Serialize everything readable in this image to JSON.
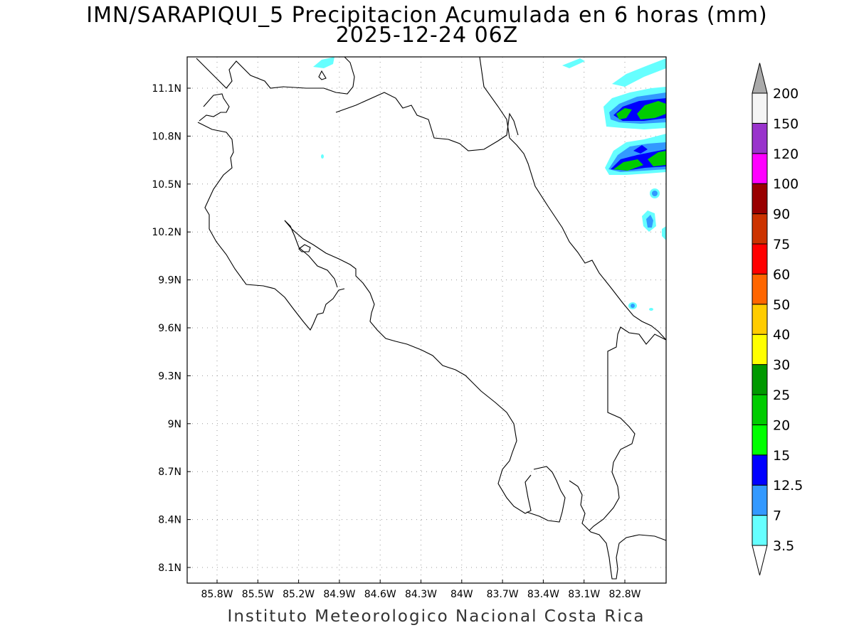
{
  "title": {
    "line1": "IMN/SARAPIQUI_5 Precipitacion Acumulada en 6 horas (mm)",
    "line2": "2025-12-24 06Z"
  },
  "footer": "Instituto Meteorologico Nacional Costa Rica",
  "axes": {
    "x_ticks": [
      "85.8W",
      "85.5W",
      "85.2W",
      "84.9W",
      "84.6W",
      "84.3W",
      "84W",
      "83.7W",
      "83.4W",
      "83.1W",
      "82.8W"
    ],
    "y_ticks": [
      "11.1N",
      "10.8N",
      "10.5N",
      "10.2N",
      "9.9N",
      "9.6N",
      "9.3N",
      "9N",
      "8.7N",
      "8.4N",
      "8.1N"
    ],
    "grid": "dotted"
  },
  "legend": {
    "levels": [
      {
        "label": "3.5",
        "color": "#66ffff"
      },
      {
        "label": "7",
        "color": "#3399ff"
      },
      {
        "label": "12.5",
        "color": "#0000ff"
      },
      {
        "label": "15",
        "color": "#00ff00"
      },
      {
        "label": "20",
        "color": "#00cc00"
      },
      {
        "label": "25",
        "color": "#009900"
      },
      {
        "label": "30",
        "color": "#ffff00"
      },
      {
        "label": "40",
        "color": "#ffcc00"
      },
      {
        "label": "50",
        "color": "#ff6600"
      },
      {
        "label": "60",
        "color": "#ff0000"
      },
      {
        "label": "75",
        "color": "#cc3300"
      },
      {
        "label": "90",
        "color": "#990000"
      },
      {
        "label": "100",
        "color": "#ff00ff"
      },
      {
        "label": "120",
        "color": "#9933cc"
      },
      {
        "label": "150",
        "color": "#f5f5f5"
      },
      {
        "label": "200",
        "color": "#aaaaaa"
      }
    ]
  }
}
